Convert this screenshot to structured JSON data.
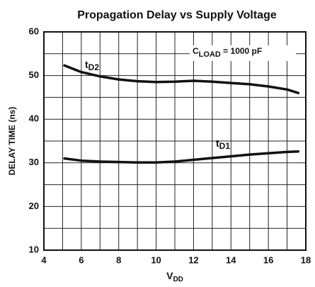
{
  "chart_data": {
    "type": "line",
    "title": "Propagation Delay vs Supply Voltage",
    "x_label": {
      "text": "V",
      "sub": "DD"
    },
    "y_label": "DELAY TIME (ns)",
    "annotation": {
      "text": "C",
      "sub": "LOAD",
      "rest": " = 1000 pF"
    },
    "xlim": [
      4,
      18
    ],
    "xticks": [
      4,
      6,
      8,
      10,
      12,
      14,
      16,
      18
    ],
    "x_minor_ticks": [
      5,
      7,
      9,
      11,
      13,
      15,
      17
    ],
    "ylim": [
      10,
      60
    ],
    "yticks": [
      10,
      20,
      30,
      40,
      50,
      60
    ],
    "y_minor_ticks": [
      15,
      25,
      35,
      45,
      55
    ],
    "grid": true,
    "series": [
      {
        "name": "t",
        "name_sub": "D2",
        "color": "#111111",
        "x": [
          5.1,
          6,
          7,
          8,
          9,
          10,
          11,
          12,
          13,
          14,
          15,
          16,
          17,
          17.6
        ],
        "values": [
          52.3,
          50.8,
          49.8,
          49.1,
          48.7,
          48.5,
          48.6,
          48.8,
          48.6,
          48.3,
          48.0,
          47.5,
          46.8,
          46.0
        ]
      },
      {
        "name": "t",
        "name_sub": "D1",
        "color": "#111111",
        "x": [
          5.1,
          6,
          7,
          8,
          9,
          10,
          11,
          12,
          13,
          14,
          15,
          16,
          17,
          17.6
        ],
        "values": [
          31.0,
          30.5,
          30.3,
          30.2,
          30.1,
          30.1,
          30.3,
          30.7,
          31.1,
          31.5,
          31.9,
          32.2,
          32.5,
          32.6
        ]
      }
    ]
  }
}
